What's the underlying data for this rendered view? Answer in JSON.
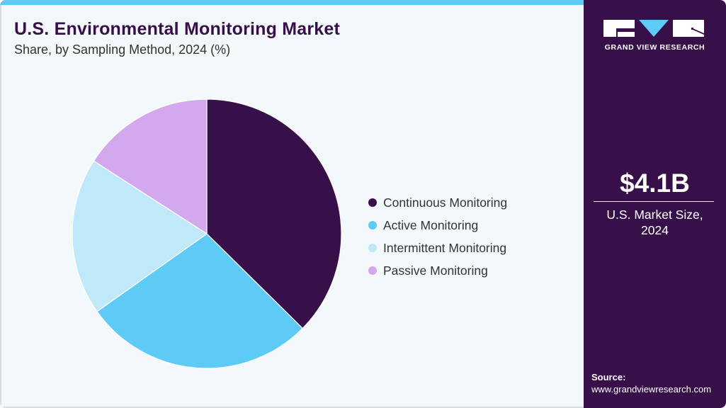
{
  "header": {
    "title": "U.S. Environmental Monitoring Market",
    "subtitle": "Share, by Sampling Method, 2024 (%)"
  },
  "sidebar": {
    "brand": "GRAND VIEW RESEARCH",
    "market_value": "$4.1B",
    "market_label_line1": "U.S. Market Size,",
    "market_label_line2": "2024",
    "source_label": "Source:",
    "source_url": "www.grandviewresearch.com"
  },
  "legend": {
    "items": [
      {
        "label": "Continuous Monitoring",
        "color": "#371049"
      },
      {
        "label": "Active Monitoring",
        "color": "#5ecaf6"
      },
      {
        "label": "Intermittent Monitoring",
        "color": "#bfe9f9"
      },
      {
        "label": "Passive Monitoring",
        "color": "#d4a8ec"
      }
    ]
  },
  "colors": {
    "accent_bar": "#5ecaf6",
    "title": "#371049",
    "sidebar_bg": "#371049",
    "background": "#f3f8fb"
  },
  "chart_data": {
    "type": "pie",
    "title": "U.S. Environmental Monitoring Market",
    "subtitle": "Share, by Sampling Method, 2024 (%)",
    "categories": [
      "Continuous Monitoring",
      "Active Monitoring",
      "Intermittent Monitoring",
      "Passive Monitoring"
    ],
    "values": [
      37.4,
      27.8,
      18.9,
      15.9
    ],
    "colors": [
      "#371049",
      "#5ecaf6",
      "#bfe9f9",
      "#d4a8ec"
    ],
    "start_angle": "12 o'clock, clockwise",
    "legend_position": "right",
    "data_labels": false
  }
}
